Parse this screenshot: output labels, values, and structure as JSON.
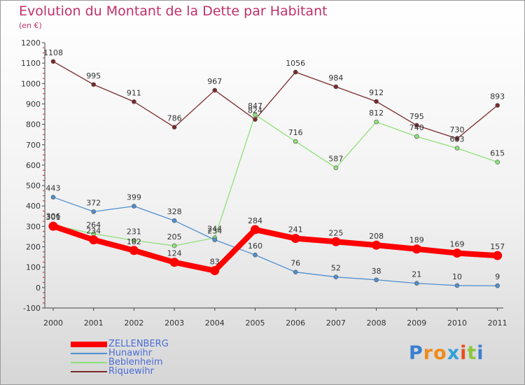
{
  "title": "Evolution du Montant de la Dette par Habitant",
  "unit_label": "(en €)",
  "logo": {
    "text": "Proxiti",
    "letters": [
      "P",
      "r",
      "o",
      "x",
      "i",
      "t",
      "i"
    ],
    "colors": [
      "#3a7fd0",
      "#f08a1a",
      "#f08a1a",
      "#2ea0d8",
      "#e84e1c",
      "#8cc63f",
      "#3a7fd0"
    ]
  },
  "chart_data": {
    "type": "line",
    "x": [
      "2000",
      "2001",
      "2002",
      "2003",
      "2004",
      "2005",
      "2006",
      "2007",
      "2008",
      "2009",
      "2010",
      "2011"
    ],
    "ylim": [
      -100,
      1200
    ],
    "yticks": [
      -100,
      0,
      100,
      200,
      300,
      400,
      500,
      600,
      700,
      800,
      900,
      1000,
      1100,
      1200
    ],
    "grid": false,
    "legend_position": "bottom-left",
    "series": [
      {
        "name": "ZELLENBERG",
        "color": "#ff0000",
        "values": [
          301,
          234,
          182,
          124,
          83,
          284,
          241,
          225,
          208,
          189,
          169,
          157
        ]
      },
      {
        "name": "Hunawihr",
        "color": "#4f8fcf",
        "values": [
          443,
          372,
          399,
          328,
          234,
          160,
          76,
          52,
          38,
          21,
          10,
          9
        ]
      },
      {
        "name": "Beblenheim",
        "color": "#8fe07a",
        "values": [
          306,
          264,
          231,
          205,
          244,
          847,
          716,
          587,
          812,
          740,
          683,
          615
        ]
      },
      {
        "name": "Riquewihr",
        "color": "#7a2a2a",
        "values": [
          1108,
          995,
          911,
          786,
          967,
          824,
          1056,
          984,
          912,
          795,
          730,
          893
        ]
      }
    ]
  }
}
